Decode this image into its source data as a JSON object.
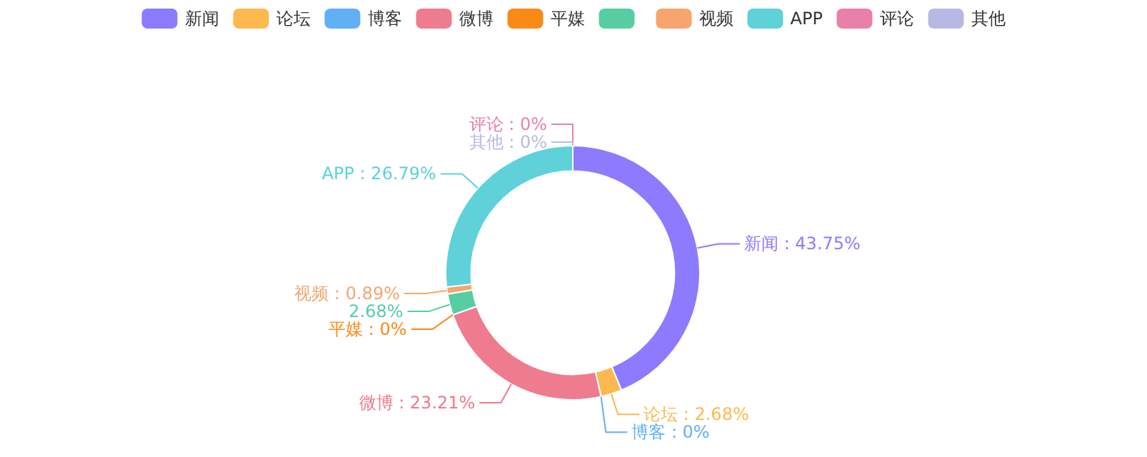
{
  "chart_data": {
    "type": "donut",
    "categories": [
      "新闻",
      "论坛",
      "博客",
      "微博",
      "平媒",
      null,
      "视频",
      "APP",
      "评论",
      "其他"
    ],
    "values": [
      43.75,
      2.68,
      0,
      23.21,
      0,
      2.68,
      0.89,
      26.79,
      0,
      0
    ],
    "colors": [
      "#8c7bff",
      "#fdb84f",
      "#61b0f5",
      "#ef7b8e",
      "#fa8a16",
      "#56cea2",
      "#f6a56e",
      "#5ed1d9",
      "#e880ab",
      "#b7b9e4"
    ],
    "value_labels": [
      "新闻 : 43.75%",
      "论坛 : 2.68%",
      "博客 : 0%",
      "微博 : 23.21%",
      "平媒 : 0%",
      "2.68%",
      "视频 : 0.89%",
      "APP : 26.79%",
      "评论 : 0%",
      "其他 : 0%"
    ],
    "legend": "top"
  }
}
